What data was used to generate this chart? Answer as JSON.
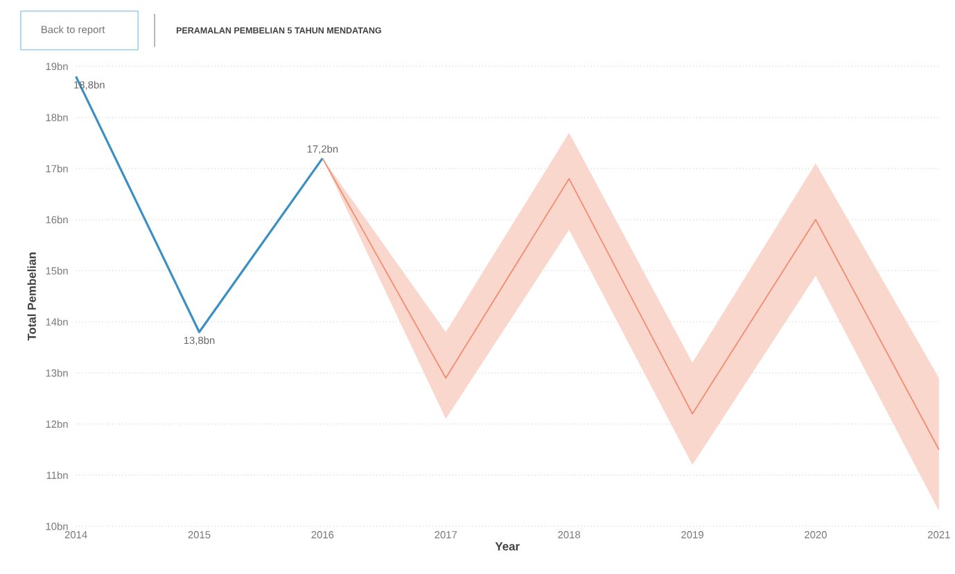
{
  "chart_data": {
    "type": "line",
    "title": "PERAMALAN PEMBELIAN 5 TAHUN MENDATANG",
    "xlabel": "Year",
    "ylabel": "Total Pembelian",
    "annotations": [
      "Back to report"
    ],
    "series": [
      {
        "color": "#3a8fc4",
        "x": [
          2014,
          2015,
          2016
        ],
        "values": [
          18.8,
          13.8,
          17.2
        ],
        "value_labels": [
          "18,8bn",
          "13,8bn",
          "17,2bn"
        ]
      },
      {
        "color": "#f08c70",
        "x": [
          2016,
          2017,
          2018,
          2019,
          2020,
          2021
        ],
        "values": [
          17.2,
          12.9,
          16.8,
          12.2,
          16.0,
          11.5
        ],
        "lower": [
          17.2,
          12.1,
          15.8,
          11.2,
          14.9,
          10.3
        ],
        "upper": [
          17.2,
          13.8,
          17.7,
          13.2,
          17.1,
          12.9
        ]
      }
    ],
    "xlim": [
      2014,
      2021
    ],
    "xticks": [
      2014,
      2015,
      2016,
      2017,
      2018,
      2019,
      2020,
      2021
    ],
    "ylim": [
      10,
      19
    ],
    "yticks": [
      {
        "value": 10,
        "label": "10bn"
      },
      {
        "value": 11,
        "label": "11bn"
      },
      {
        "value": 12,
        "label": "12bn"
      },
      {
        "value": 13,
        "label": "13bn"
      },
      {
        "value": 14,
        "label": "14bn"
      },
      {
        "value": 15,
        "label": "15bn"
      },
      {
        "value": 16,
        "label": "16bn"
      },
      {
        "value": 17,
        "label": "17bn"
      },
      {
        "value": 18,
        "label": "18bn"
      },
      {
        "value": 19,
        "label": "19bn"
      }
    ],
    "grid": "y",
    "marker": "none",
    "line_style": "solid"
  }
}
